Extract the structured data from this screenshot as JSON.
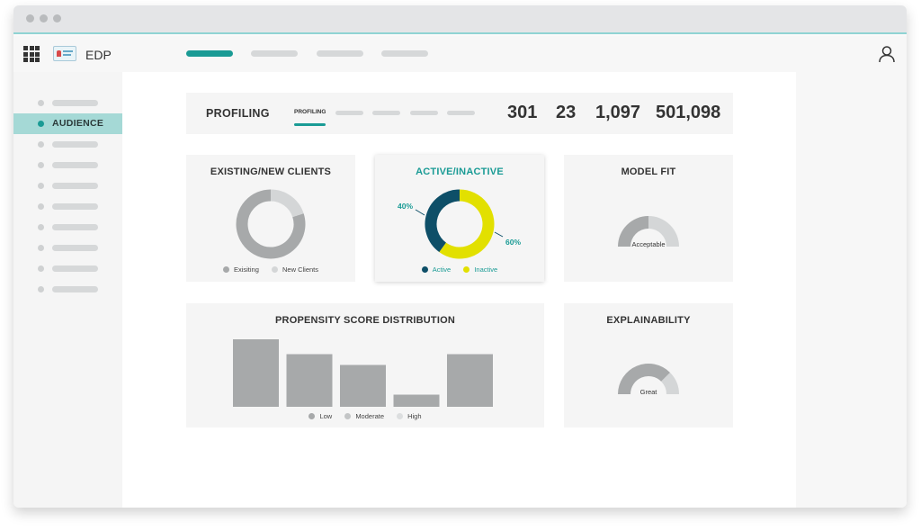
{
  "app": {
    "name": "EDP"
  },
  "sidebar": {
    "active_label": "AUDIENCE"
  },
  "profiling": {
    "title": "PROFILING",
    "active_tab": "PROFILING",
    "stats": [
      "301",
      "23",
      "1,097",
      "501,098"
    ]
  },
  "cards": {
    "existing_new": {
      "title": "EXISTING/NEW CLIENTS",
      "legend": [
        "Exisiting",
        "New Clients"
      ]
    },
    "active_inactive": {
      "title": "ACTIVE/INACTIVE",
      "legend": [
        "Active",
        "Inactive"
      ],
      "label_active": "40%",
      "label_inactive": "60%"
    },
    "model_fit": {
      "title": "MODEL FIT",
      "gauge_label": "Acceptable"
    },
    "propensity": {
      "title": "PROPENSITY SCORE DISTRIBUTION",
      "legend": [
        "Low",
        "Moderate",
        "High"
      ]
    },
    "explainability": {
      "title": "EXPLAINABILITY",
      "gauge_label": "Great"
    }
  },
  "colors": {
    "accent": "#1a9b95",
    "active_navy": "#0e4f68",
    "inactive_yellow": "#e2e000",
    "gray_dark": "#a7a9aa",
    "gray_light": "#d4d6d7"
  },
  "chart_data": [
    {
      "type": "pie",
      "title": "EXISTING/NEW CLIENTS",
      "categories": [
        "Exisiting",
        "New Clients"
      ],
      "values": [
        80,
        20
      ]
    },
    {
      "type": "pie",
      "title": "ACTIVE/INACTIVE",
      "categories": [
        "Active",
        "Inactive"
      ],
      "values": [
        40,
        60
      ]
    },
    {
      "type": "bar",
      "title": "PROPENSITY SCORE DISTRIBUTION",
      "values": [
        100,
        78,
        62,
        18,
        78
      ]
    }
  ]
}
